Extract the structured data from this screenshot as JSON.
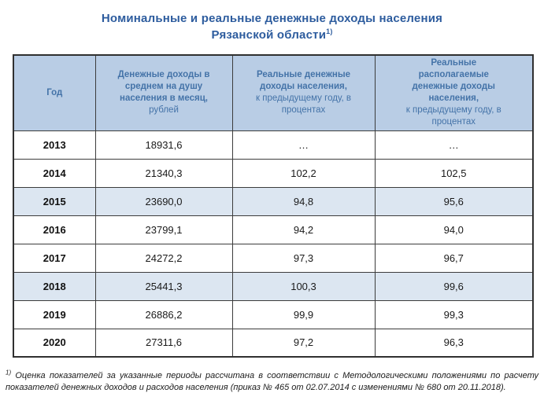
{
  "title": {
    "line1": "Номинальные и реальные денежные доходы населения",
    "line2": "Рязанской области",
    "superscript": "1)"
  },
  "table": {
    "columns": [
      {
        "title_bold": "Год",
        "title_normal": ""
      },
      {
        "title_bold": "Денежные доходы в среднем на душу населения в месяц,",
        "title_normal": "рублей"
      },
      {
        "title_bold": "Реальные денежные доходы населения,",
        "title_normal": "к предыдущему году, в процентах"
      },
      {
        "title_bold": "Реальные располагаемые денежные доходы населения,",
        "title_normal": "к предыдущему году, в процентах"
      }
    ],
    "rows": [
      {
        "year": "2013",
        "income": "18931,6",
        "real_income": "…",
        "real_disposable": "…",
        "highlighted": false
      },
      {
        "year": "2014",
        "income": "21340,3",
        "real_income": "102,2",
        "real_disposable": "102,5",
        "highlighted": false
      },
      {
        "year": "2015",
        "income": "23690,0",
        "real_income": "94,8",
        "real_disposable": "95,6",
        "highlighted": true
      },
      {
        "year": "2016",
        "income": "23799,1",
        "real_income": "94,2",
        "real_disposable": "94,0",
        "highlighted": false
      },
      {
        "year": "2017",
        "income": "24272,2",
        "real_income": "97,3",
        "real_disposable": "96,7",
        "highlighted": false
      },
      {
        "year": "2018",
        "income": "25441,3",
        "real_income": "100,3",
        "real_disposable": "99,6",
        "highlighted": true
      },
      {
        "year": "2019",
        "income": "26886,2",
        "real_income": "99,9",
        "real_disposable": "99,3",
        "highlighted": false
      },
      {
        "year": "2020",
        "income": "27311,6",
        "real_income": "97,2",
        "real_disposable": "96,3",
        "highlighted": false
      }
    ]
  },
  "footnote": {
    "marker": "1)",
    "text": "Оценка показателей за указанные периоды рассчитана в соответствии с Методологическими положениями по расчету показателей денежных доходов и расходов населения (приказ № 465 от 02.07.2014 с изменениями № 680 от 20.11.2018)."
  },
  "colors": {
    "title_text": "#2d5c9e",
    "header_bg": "#b9cde5",
    "header_text": "#4473a8",
    "row_highlight": "#dce6f1",
    "border": "#3c3c3c"
  }
}
